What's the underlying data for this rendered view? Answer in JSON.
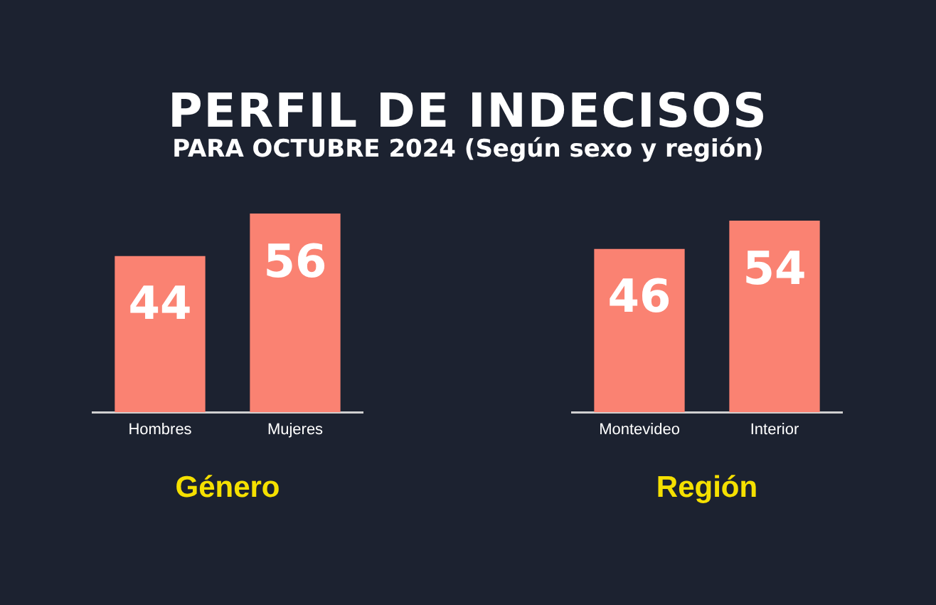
{
  "chart_data": [
    {
      "type": "bar",
      "title": "PERFIL DE INDECISOS",
      "subtitle": "PARA OCTUBRE 2024 (Según sexo y región)",
      "xlabel": "Género",
      "categories": [
        "Hombres",
        "Mujeres"
      ],
      "values": [
        44,
        56
      ],
      "color": "#fa8272",
      "tick_labels": "x",
      "data_labels": true,
      "grid": false,
      "legend": false
    },
    {
      "type": "bar",
      "xlabel": "Región",
      "categories": [
        "Montevideo",
        "Interior"
      ],
      "values": [
        46,
        54
      ],
      "color": "#fa8272",
      "tick_labels": "x",
      "data_labels": true,
      "grid": false,
      "legend": false
    }
  ]
}
